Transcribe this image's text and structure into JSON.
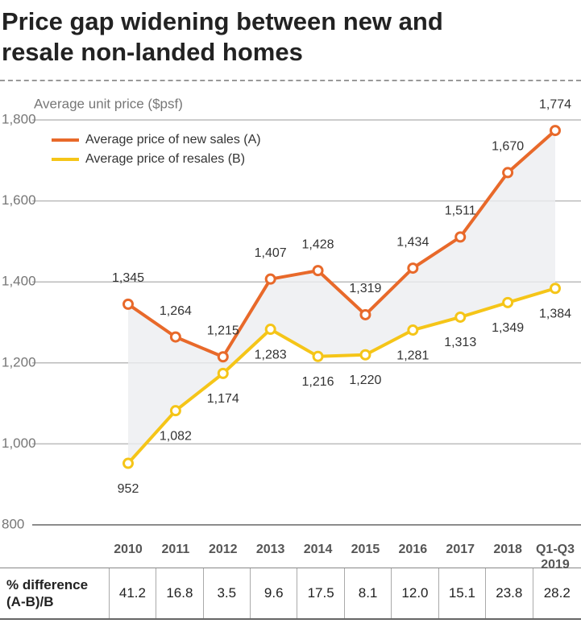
{
  "chart_data": {
    "type": "line",
    "title": "Price gap widening between new and resale non-landed homes",
    "y_label": "Average unit price ($psf)",
    "categories": [
      "2010",
      "2011",
      "2012",
      "2013",
      "2014",
      "2015",
      "2016",
      "2017",
      "2018",
      "Q1-Q3 2019"
    ],
    "series": [
      {
        "name": "Average price of new sales (A)",
        "color": "#e8692a",
        "values": [
          1345,
          1264,
          1215,
          1407,
          1428,
          1319,
          1434,
          1511,
          1670,
          1774
        ],
        "value_labels": [
          "1,345",
          "1,264",
          "1,215",
          "1,407",
          "1,428",
          "1,319",
          "1,434",
          "1,511",
          "1,670",
          "1,774"
        ]
      },
      {
        "name": "Average price of resales (B)",
        "color": "#f5c518",
        "values": [
          952,
          1082,
          1174,
          1283,
          1216,
          1220,
          1281,
          1313,
          1349,
          1384
        ],
        "value_labels": [
          "952",
          "1,082",
          "1,174",
          "1,283",
          "1,216",
          "1,220",
          "1,281",
          "1,313",
          "1,349",
          "1,384"
        ]
      }
    ],
    "ylim": [
      800,
      1800
    ],
    "yticks": [
      {
        "value": 800,
        "label": "800"
      },
      {
        "value": 1000,
        "label": "1,000"
      },
      {
        "value": 1200,
        "label": "1,200"
      },
      {
        "value": 1400,
        "label": "1,400"
      },
      {
        "value": 1600,
        "label": "1,600"
      },
      {
        "value": 1800,
        "label": "1,800"
      }
    ],
    "grid": true
  },
  "table": {
    "header": "% difference (A-B)/B",
    "values": [
      "41.2",
      "16.8",
      "3.5",
      "9.6",
      "17.5",
      "8.1",
      "12.0",
      "15.1",
      "23.8",
      "28.2"
    ]
  }
}
